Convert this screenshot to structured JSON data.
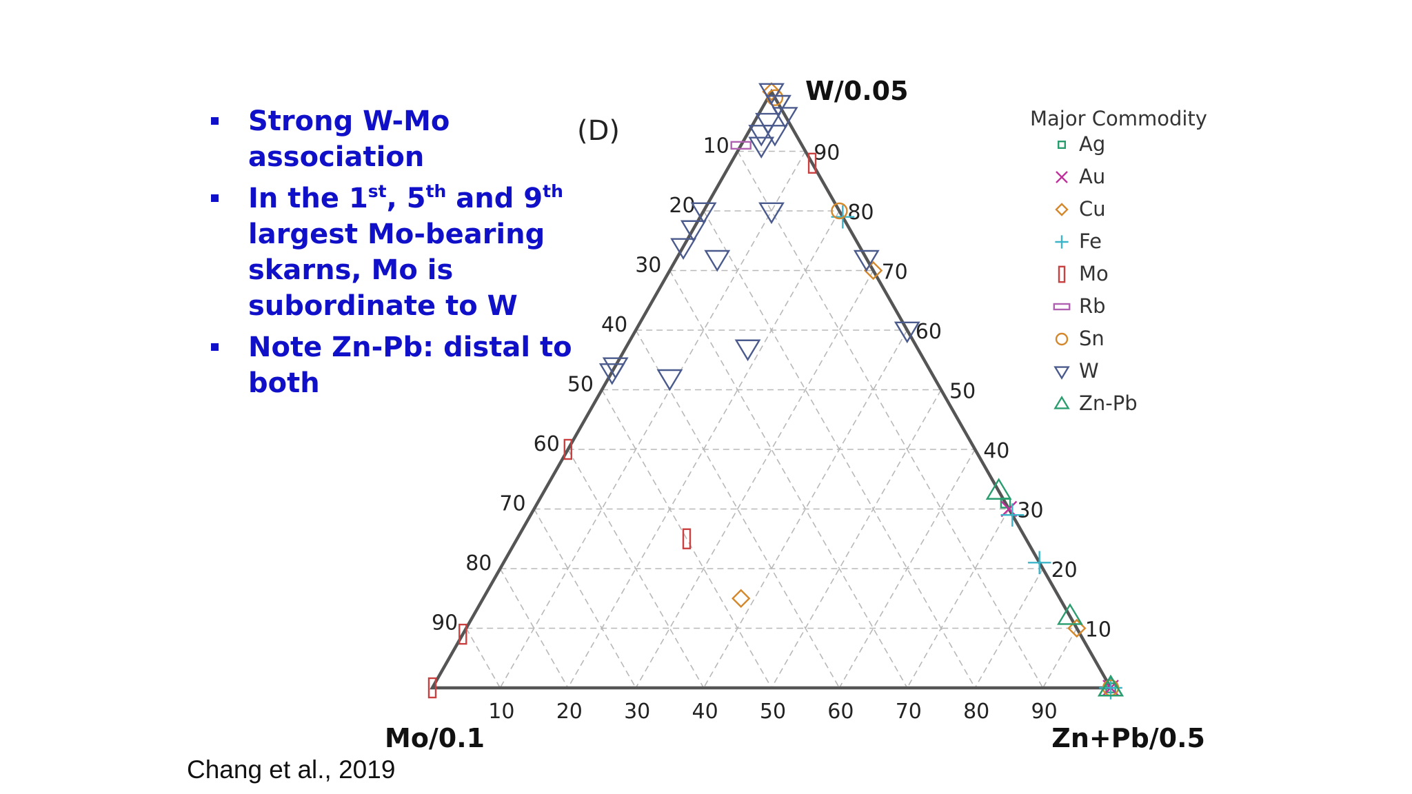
{
  "bullets": [
    {
      "parts": [
        "Strong W-Mo association"
      ]
    },
    {
      "parts": [
        "In the 1",
        "st",
        ", 5",
        "th",
        " and 9",
        "th",
        " largest Mo-bearing skarns, Mo is subordinate to W"
      ]
    },
    {
      "parts": [
        "Note Zn-Pb: distal to both"
      ]
    }
  ],
  "citation": "Chang et al., 2019",
  "colors": {
    "text_blue": "#1010c8",
    "axis": "#555555",
    "grid": "#b8b8b8"
  },
  "chart_data": {
    "type": "scatter",
    "subtype": "ternary",
    "panel_label": "(D)",
    "vertices": {
      "top": "W/0.05",
      "left": "Mo/0.1",
      "right": "Zn+Pb/0.5"
    },
    "left_edge_ticks": [
      "10",
      "20",
      "30",
      "40",
      "50",
      "60",
      "70",
      "80",
      "90"
    ],
    "right_edge_ticks": [
      "90",
      "80",
      "70",
      "60",
      "50",
      "40",
      "30",
      "20",
      "10"
    ],
    "bottom_ticks": [
      "10",
      "20",
      "30",
      "40",
      "50",
      "60",
      "70",
      "80",
      "90"
    ],
    "grid": true,
    "legend_title": "Major Commodity",
    "legend_position": "top-right",
    "series": [
      {
        "name": "Ag",
        "marker": "square",
        "color": "#2a9d6f",
        "points": [
          [
            0,
            31,
            69
          ],
          [
            0,
            0,
            100
          ]
        ]
      },
      {
        "name": "Au",
        "marker": "x",
        "color": "#c0309a",
        "points": [
          [
            0,
            0,
            100
          ],
          [
            0,
            30,
            70
          ]
        ]
      },
      {
        "name": "Cu",
        "marker": "diamond",
        "color": "#d4882c",
        "points": [
          [
            0,
            70,
            30
          ],
          [
            0,
            10,
            90
          ],
          [
            47,
            15,
            38
          ],
          [
            0,
            100,
            0
          ]
        ]
      },
      {
        "name": "Fe",
        "marker": "plus",
        "color": "#3ab4c8",
        "points": [
          [
            0,
            0,
            100
          ],
          [
            0,
            79,
            21
          ],
          [
            0,
            21,
            79
          ],
          [
            0,
            29,
            71
          ]
        ]
      },
      {
        "name": "Mo",
        "marker": "rect-tall",
        "color": "#c84040",
        "points": [
          [
            100,
            0,
            0
          ],
          [
            91,
            9,
            0
          ],
          [
            60,
            40,
            0
          ],
          [
            50,
            25,
            25
          ],
          [
            0,
            88,
            12
          ]
        ]
      },
      {
        "name": "Rb",
        "marker": "rect-wide",
        "color": "#b060b0",
        "points": [
          [
            9,
            91,
            0
          ]
        ]
      },
      {
        "name": "Sn",
        "marker": "circle",
        "color": "#d4882c",
        "points": [
          [
            0,
            99,
            1
          ],
          [
            0,
            80,
            20
          ],
          [
            0,
            0,
            100
          ]
        ]
      },
      {
        "name": "W",
        "marker": "triangle-down",
        "color": "#4a5a8c",
        "points": [
          [
            0,
            100,
            0
          ],
          [
            0,
            98,
            2
          ],
          [
            0,
            96,
            4
          ],
          [
            3,
            95,
            2
          ],
          [
            5,
            93,
            2
          ],
          [
            3,
            93,
            4
          ],
          [
            6,
            91,
            3
          ],
          [
            20,
            80,
            0
          ],
          [
            23,
            77,
            0
          ],
          [
            26,
            74,
            0
          ],
          [
            10,
            80,
            10
          ],
          [
            22,
            72,
            6
          ],
          [
            0,
            72,
            28
          ],
          [
            0,
            60,
            40
          ],
          [
            46,
            54,
            0
          ],
          [
            47,
            53,
            0
          ],
          [
            39,
            52,
            9
          ],
          [
            25,
            57,
            18
          ],
          [
            0,
            98,
            2
          ]
        ]
      },
      {
        "name": "Zn-Pb",
        "marker": "triangle-up",
        "color": "#2a9d6f",
        "points": [
          [
            0,
            33,
            67
          ],
          [
            0,
            12,
            88
          ],
          [
            0,
            0,
            100
          ],
          [
            0,
            0,
            100
          ],
          [
            0,
            0,
            74
          ]
        ]
      }
    ]
  }
}
